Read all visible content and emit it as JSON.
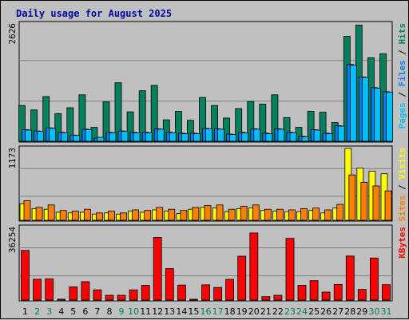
{
  "chart_data": {
    "type": "bar",
    "title": "Daily usage for August 2025",
    "colors": {
      "background": "#c0c0c0",
      "plot_bg": "#c0c0c0",
      "title": "#0000a0",
      "hits": "#00805c",
      "files": "#0080ff",
      "pages": "#00c0ff",
      "visits": "#ffff00",
      "sites": "#ff8000",
      "kbytes": "#ff0000",
      "weekday_label": "#000000",
      "weekend_label": "#00805c"
    },
    "days": [
      "1",
      "2",
      "3",
      "4",
      "5",
      "6",
      "7",
      "8",
      "9",
      "10",
      "11",
      "12",
      "13",
      "14",
      "15",
      "16",
      "17",
      "18",
      "19",
      "20",
      "21",
      "22",
      "23",
      "24",
      "25",
      "26",
      "27",
      "28",
      "29",
      "30",
      "31"
    ],
    "weekend_days": [
      "2",
      "3",
      "9",
      "10",
      "16",
      "17",
      "23",
      "24",
      "30",
      "31"
    ],
    "panels": [
      {
        "id": "top",
        "max_label": "2626",
        "ymax": 2626,
        "legend": [
          {
            "text": "Pages",
            "color": "#00c0ff"
          },
          {
            "text": " / ",
            "color": "#000000"
          },
          {
            "text": "Files",
            "color": "#0080ff"
          },
          {
            "text": " / ",
            "color": "#000000"
          },
          {
            "text": "Hits",
            "color": "#00805c"
          }
        ],
        "series": [
          {
            "name": "Hits",
            "color": "#00805c",
            "values": [
              800,
              700,
              1000,
              620,
              750,
              1040,
              310,
              880,
              1310,
              660,
              1130,
              1250,
              480,
              670,
              470,
              980,
              800,
              520,
              730,
              890,
              830,
              1040,
              530,
              310,
              670,
              650,
              420,
              2350,
              2600,
              1870,
              1960
            ]
          },
          {
            "name": "Files",
            "color": "#0080ff",
            "values": [
              260,
              230,
              300,
              200,
              140,
              270,
              70,
              200,
              230,
              200,
              200,
              280,
              200,
              180,
              180,
              290,
              280,
              160,
              200,
              280,
              180,
              280,
              200,
              110,
              260,
              180,
              350,
              1720,
              1440,
              1200,
              1110
            ]
          },
          {
            "name": "Pages",
            "color": "#00c0ff",
            "values": [
              250,
              220,
              290,
              190,
              130,
              260,
              90,
              190,
              220,
              190,
              190,
              270,
              190,
              170,
              170,
              280,
              270,
              150,
              190,
              270,
              170,
              270,
              190,
              100,
              250,
              170,
              340,
              1700,
              1430,
              1190,
              1100
            ]
          }
        ]
      },
      {
        "id": "middle",
        "max_label": "1173",
        "ymax": 1173,
        "legend": [
          {
            "text": "Sites",
            "color": "#ff8000"
          },
          {
            "text": " / ",
            "color": "#000000"
          },
          {
            "text": "Visits",
            "color": "#ffff00"
          }
        ],
        "series": [
          {
            "name": "Visits",
            "color": "#ffff00",
            "values": [
              270,
              190,
              180,
              130,
              120,
              130,
              100,
              120,
              100,
              150,
              130,
              170,
              150,
              110,
              180,
              210,
              200,
              140,
              190,
              200,
              160,
              150,
              140,
              140,
              160,
              120,
              200,
              1173,
              850,
              800,
              760
            ]
          },
          {
            "name": "Sites",
            "color": "#ff8000",
            "values": [
              320,
              210,
              250,
              160,
              150,
              180,
              120,
              150,
              120,
              170,
              160,
              210,
              180,
              160,
              210,
              240,
              250,
              180,
              230,
              250,
              180,
              180,
              170,
              190,
              200,
              170,
              260,
              740,
              620,
              560,
              480
            ]
          }
        ]
      },
      {
        "id": "bottom",
        "max_label": "36254",
        "ymax": 36254,
        "legend": [
          {
            "text": "KBytes",
            "color": "#ff0000"
          }
        ],
        "series": [
          {
            "name": "KBytes",
            "color": "#ff0000",
            "values": [
              24800,
              10400,
              10600,
              450,
              6600,
              9200,
              5100,
              2400,
              2400,
              5100,
              7400,
              31300,
              15700,
              7500,
              400,
              7600,
              6300,
              10300,
              21900,
              33500,
              1700,
              2400,
              30800,
              7400,
              9700,
              4000,
              7800,
              22000,
              5300,
              21000,
              7700
            ]
          }
        ]
      }
    ]
  }
}
